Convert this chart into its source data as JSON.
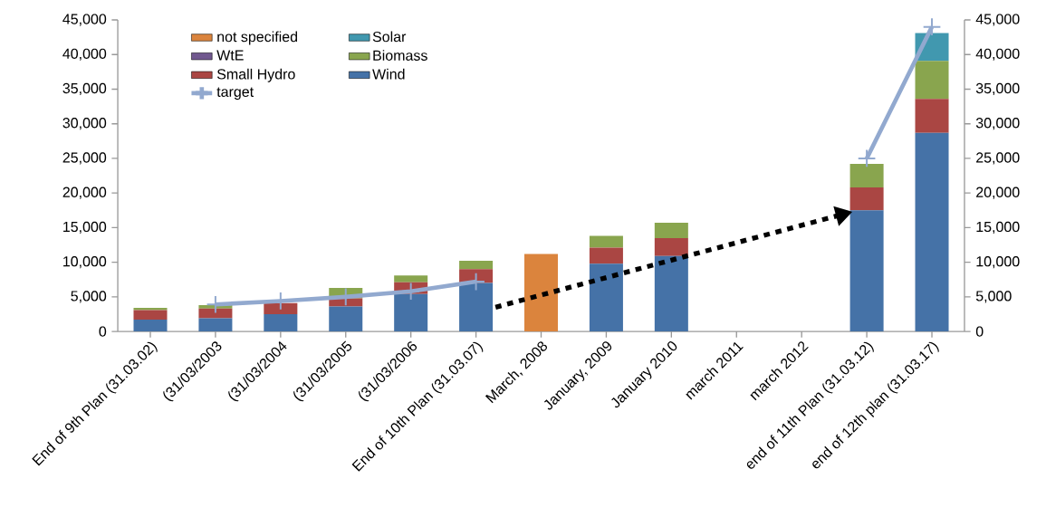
{
  "chart_data": {
    "type": "bar",
    "stacked": true,
    "categories": [
      "End of 9th Plan (31.03.02)",
      "(31/03/2003",
      "(31/03/2004",
      "(31/03/2005",
      "(31/03/2006",
      "End of 10th Plan (31.03.07)",
      "March, 2008",
      "January, 2009",
      "January 2010",
      "march 2011",
      "march 2012",
      "end of 11th Plan (31.03.12)",
      "end of 12th plan (31.03.17)"
    ],
    "series": [
      {
        "name": "Wind",
        "color": "#4572a7",
        "values": [
          1700,
          1900,
          2500,
          3600,
          5400,
          7000,
          null,
          9800,
          10900,
          null,
          null,
          17500,
          28700
        ]
      },
      {
        "name": "Small Hydro",
        "color": "#aa4643",
        "values": [
          1400,
          1400,
          1600,
          1200,
          1700,
          2000,
          null,
          2300,
          2600,
          null,
          null,
          3300,
          4900
        ]
      },
      {
        "name": "Biomass",
        "color": "#89a54e",
        "values": [
          300,
          500,
          null,
          1500,
          1000,
          1200,
          null,
          1700,
          2200,
          null,
          null,
          3400,
          5500
        ]
      },
      {
        "name": "WtE",
        "color": "#71588f",
        "values": [
          null,
          null,
          null,
          null,
          null,
          null,
          null,
          null,
          null,
          null,
          null,
          null,
          null
        ]
      },
      {
        "name": "Solar",
        "color": "#4198af",
        "values": [
          null,
          null,
          null,
          null,
          null,
          null,
          null,
          null,
          null,
          null,
          null,
          null,
          4000
        ]
      },
      {
        "name": "not specified",
        "color": "#db843d",
        "values": [
          null,
          null,
          null,
          null,
          null,
          null,
          11200,
          null,
          null,
          null,
          null,
          null,
          null
        ]
      },
      {
        "name": "target",
        "type": "line",
        "color": "#92a9cf",
        "marker": "cross",
        "values": [
          null,
          3900,
          4400,
          5000,
          5800,
          7200,
          null,
          null,
          null,
          null,
          null,
          25000,
          44000
        ]
      }
    ],
    "ylim": [
      0,
      45000
    ],
    "yticks": [
      {
        "value": 0,
        "label": "0"
      },
      {
        "value": 5000,
        "label": "5,000"
      },
      {
        "value": 10000,
        "label": "10,000"
      },
      {
        "value": 15000,
        "label": "15,000"
      },
      {
        "value": 20000,
        "label": "20,000"
      },
      {
        "value": 25000,
        "label": "25,000"
      },
      {
        "value": 30000,
        "label": "30,000"
      },
      {
        "value": 35000,
        "label": "35,000"
      },
      {
        "value": 40000,
        "label": "40,000"
      },
      {
        "value": 45000,
        "label": "45,000"
      }
    ],
    "y2lim": [
      0,
      45000
    ],
    "y2ticks": [
      {
        "value": 0,
        "label": "0"
      },
      {
        "value": 5000,
        "label": "5,000"
      },
      {
        "value": 10000,
        "label": "10,000"
      },
      {
        "value": 15000,
        "label": "15,000"
      },
      {
        "value": 20000,
        "label": "20,000"
      },
      {
        "value": 25000,
        "label": "25,000"
      },
      {
        "value": 30000,
        "label": "30,000"
      },
      {
        "value": 35000,
        "label": "35,000"
      },
      {
        "value": 40000,
        "label": "40,000"
      },
      {
        "value": 45000,
        "label": "45,000"
      }
    ],
    "legend": "top left",
    "grid": false
  }
}
